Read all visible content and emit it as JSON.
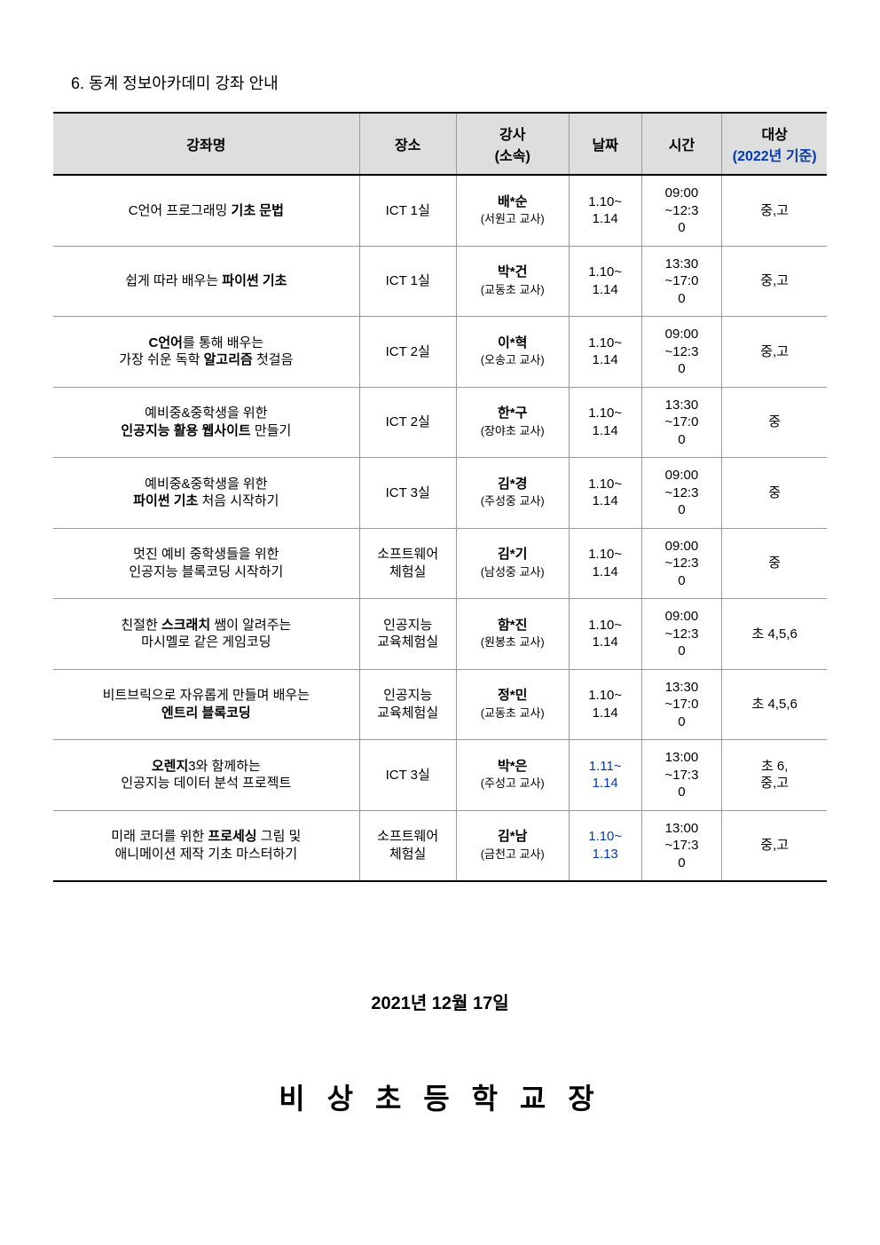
{
  "section_title": "6. 동계 정보아카데미 강좌 안내",
  "table": {
    "columns": {
      "name": "강좌명",
      "place": "장소",
      "instructor": "강사",
      "instructor_sub": "(소속)",
      "date": "날짜",
      "time": "시간",
      "target": "대상",
      "target_note": "(2022년 기준)"
    },
    "rows": [
      {
        "name_html": "C언어 프로그래밍 <b>기초 문법</b>",
        "place": "ICT 1실",
        "instructor_name": "배*순",
        "instructor_affil": "(서원고 교사)",
        "date": "1.10~1.14",
        "date_highlight": false,
        "time": "09:00~12:30",
        "target": "중,고"
      },
      {
        "name_html": "쉽게 따라 배우는 <b>파이썬 기초</b>",
        "place": "ICT 1실",
        "instructor_name": "박*건",
        "instructor_affil": "(교동초 교사)",
        "date": "1.10~1.14",
        "date_highlight": false,
        "time": "13:30~17:00",
        "target": "중,고"
      },
      {
        "name_html": "<b>C언어</b>를 통해 배우는<br>가장 쉬운 독학 <b>알고리즘</b> 첫걸음",
        "place": "ICT 2실",
        "instructor_name": "이*혁",
        "instructor_affil": "(오송고 교사)",
        "date": "1.10~1.14",
        "date_highlight": false,
        "time": "09:00~12:30",
        "target": "중,고"
      },
      {
        "name_html": "예비중&amp;중학생을 위한<br><b>인공지능 활용 웹사이트</b> 만들기",
        "place": "ICT 2실",
        "instructor_name": "한*구",
        "instructor_affil": "(장야초 교사)",
        "date": "1.10~1.14",
        "date_highlight": false,
        "time": "13:30~17:00",
        "target": "중"
      },
      {
        "name_html": "예비중&amp;중학생을 위한<br><b>파이썬 기초</b> 처음 시작하기",
        "place": "ICT 3실",
        "instructor_name": "김*경",
        "instructor_affil": "(주성중 교사)",
        "date": "1.10~1.14",
        "date_highlight": false,
        "time": "09:00~12:30",
        "target": "중"
      },
      {
        "name_html": "멋진 예비 중학생들을 위한<br>인공지능 블록코딩 시작하기",
        "place": "소프트웨어<br>체험실",
        "instructor_name": "김*기",
        "instructor_affil": "(남성중 교사)",
        "date": "1.10~1.14",
        "date_highlight": false,
        "time": "09:00~12:30",
        "target": "중"
      },
      {
        "name_html": "친절한 <b>스크래치</b> 쌤이 알려주는<br>마시멜로 같은 게임코딩",
        "place": "인공지능<br>교육체험실",
        "instructor_name": "함*진",
        "instructor_affil": "(원봉초 교사)",
        "date": "1.10~1.14",
        "date_highlight": false,
        "time": "09:00~12:30",
        "target": "초 4,5,6"
      },
      {
        "name_html": "비트브릭으로 자유롭게 만들며 배우는<br><b>엔트리 블록코딩</b>",
        "place": "인공지능<br>교육체험실",
        "instructor_name": "정*민",
        "instructor_affil": "(교동초 교사)",
        "date": "1.10~1.14",
        "date_highlight": false,
        "time": "13:30~17:00",
        "target": "초 4,5,6"
      },
      {
        "name_html": "<b>오렌지</b>3와 함께하는<br>인공지능 데이터 분석 프로젝트",
        "place": "ICT 3실",
        "instructor_name": "박*은",
        "instructor_affil": "(주성고 교사)",
        "date": "1.11~1.14",
        "date_highlight": true,
        "time": "13:00~17:30",
        "target": "초 6,<br>중,고"
      },
      {
        "name_html": "미래 코더를 위한 <b>프로세싱</b> 그림 및<br>애니메이션 제작 기초 마스터하기",
        "place": "소프트웨어<br>체험실",
        "instructor_name": "김*남",
        "instructor_affil": "(금천고 교사)",
        "date": "1.10~1.13",
        "date_highlight": true,
        "time": "13:00~17:30",
        "target": "중,고"
      }
    ]
  },
  "footer": {
    "date": "2021년 12월 17일",
    "school": "비 상 초 등 학 교 장"
  },
  "styling": {
    "page_background": "#ffffff",
    "text_color": "#000000",
    "header_background": "#dedede",
    "border_color": "#999999",
    "outer_border_color": "#000000",
    "highlight_color": "#0039b3",
    "body_fontsize": 15,
    "title_fontsize": 18,
    "footer_date_fontsize": 20,
    "footer_school_fontsize": 32
  }
}
